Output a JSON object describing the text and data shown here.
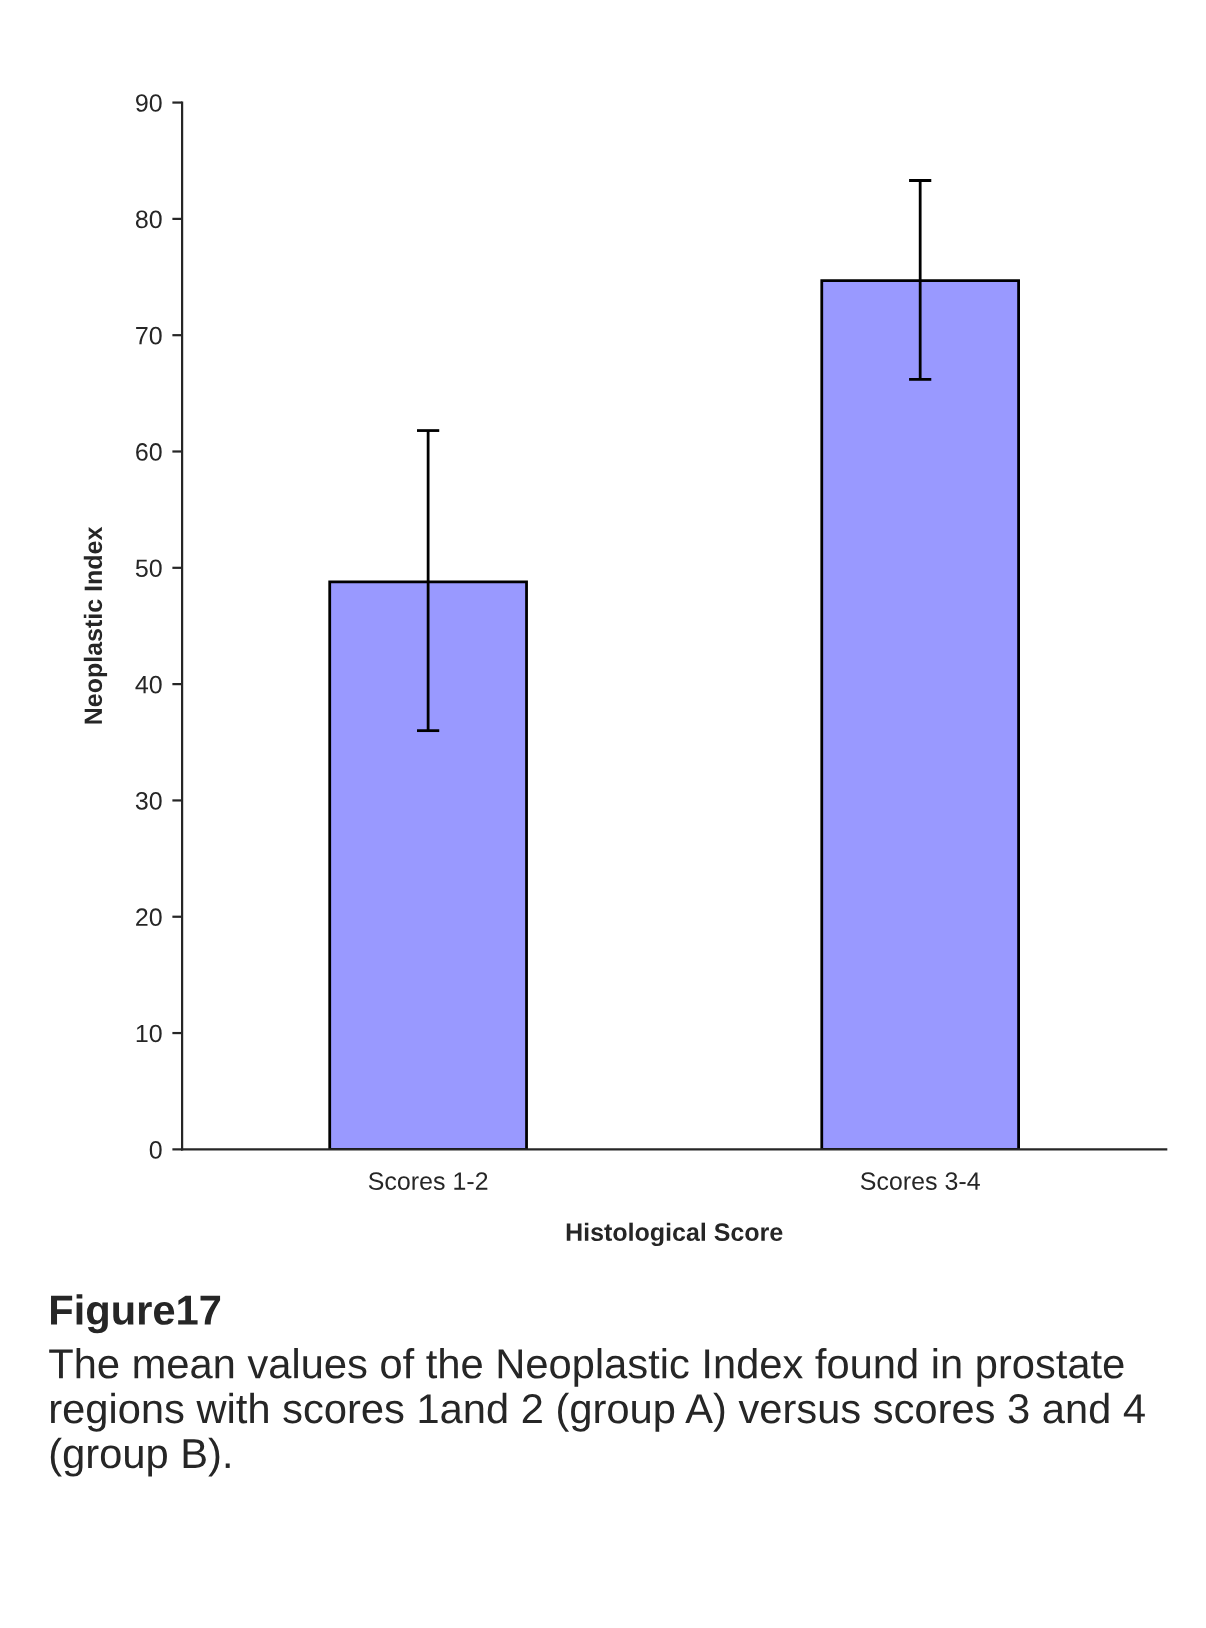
{
  "chart_data": {
    "type": "bar",
    "xlabel": "Histological Score",
    "ylabel": "Neoplastic Index",
    "categories": [
      "Scores 1-2",
      "Scores 3-4"
    ],
    "values": [
      48.8,
      74.7
    ],
    "errors": [
      [
        36,
        61.8
      ],
      [
        66.2,
        83.3
      ]
    ],
    "color": "#9999ff",
    "ylim": [
      0,
      90
    ],
    "yticks": [
      0,
      10,
      20,
      30,
      40,
      50,
      60,
      70,
      80,
      90
    ],
    "annotations": [
      "Figure17",
      "The mean values of the Neoplastic Index found in prostate regions with scores 1and 2 (group A) versus scores 3 and 4 (group B)."
    ]
  }
}
